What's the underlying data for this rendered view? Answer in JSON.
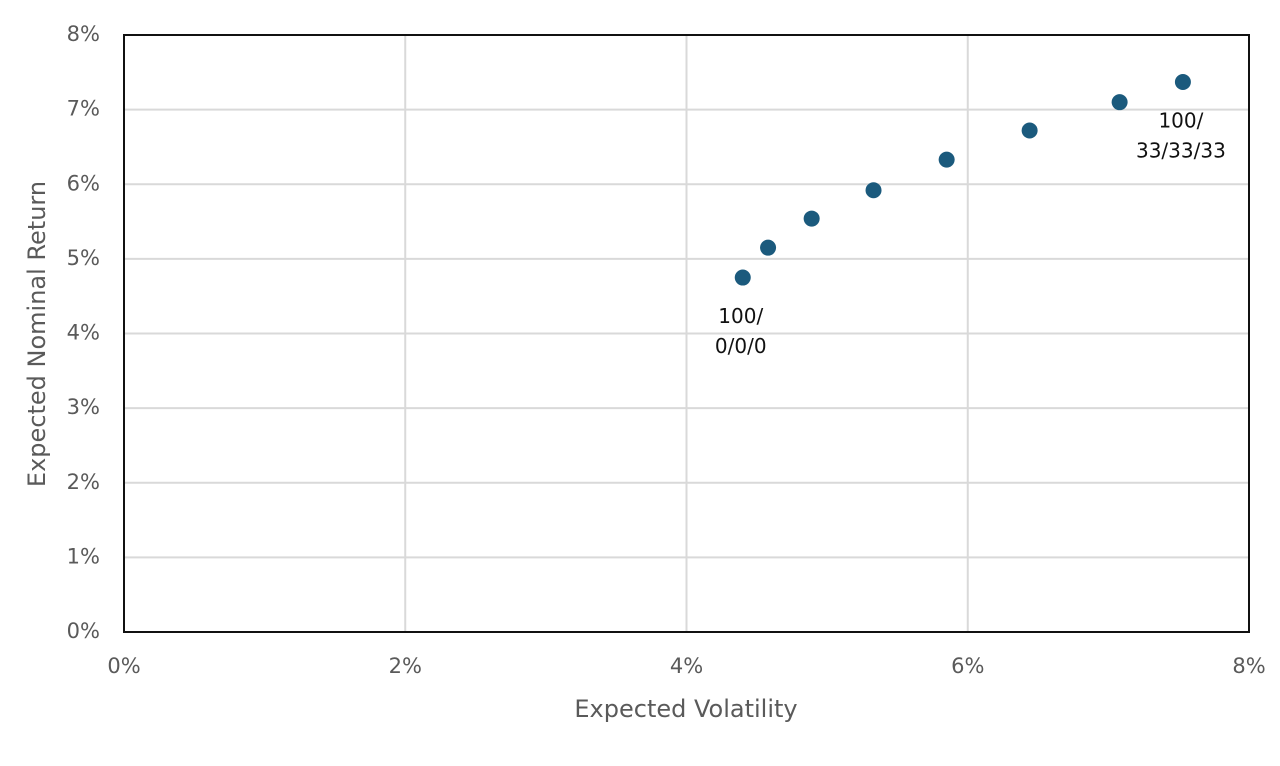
{
  "chart_data": {
    "type": "scatter",
    "xlabel": "Expected Volatility",
    "ylabel": "Expected Nominal Return",
    "series": [
      {
        "color": "#1b5a7d",
        "x": [
          4.4,
          4.58,
          4.89,
          5.33,
          5.85,
          6.44,
          7.08,
          7.53
        ],
        "values": [
          4.75,
          5.15,
          5.54,
          5.92,
          6.33,
          6.72,
          7.1,
          7.37
        ]
      }
    ],
    "xlim": [
      0,
      8
    ],
    "xticks": [
      {
        "value": 0,
        "label": "0%"
      },
      {
        "value": 2,
        "label": "2%"
      },
      {
        "value": 4,
        "label": "4%"
      },
      {
        "value": 6,
        "label": "6%"
      },
      {
        "value": 8,
        "label": "8%"
      }
    ],
    "ylim": [
      0,
      8
    ],
    "yticks": [
      {
        "value": 0,
        "label": "0%"
      },
      {
        "value": 1,
        "label": "1%"
      },
      {
        "value": 2,
        "label": "2%"
      },
      {
        "value": 3,
        "label": "3%"
      },
      {
        "value": 4,
        "label": "4%"
      },
      {
        "value": 5,
        "label": "5%"
      },
      {
        "value": 6,
        "label": "6%"
      },
      {
        "value": 7,
        "label": "7%"
      },
      {
        "value": 8,
        "label": "8%"
      }
    ],
    "grid": true,
    "annotations": [
      {
        "lines": [
          "100/",
          "0/0/0"
        ],
        "x": 4.4,
        "y": 4.75
      },
      {
        "lines": [
          "100/",
          "33/33/33"
        ],
        "x": 7.53,
        "y": 7.37
      }
    ]
  }
}
